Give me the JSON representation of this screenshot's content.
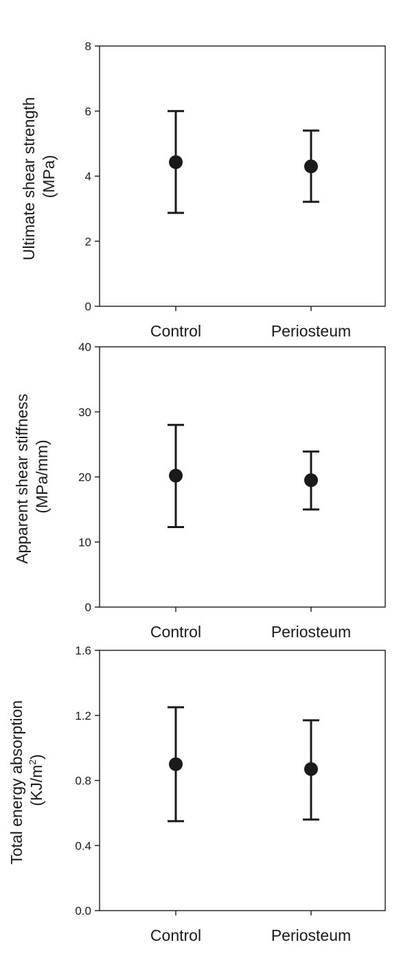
{
  "chart_data": [
    {
      "type": "scatter",
      "categories": [
        "Control",
        "Periosteum"
      ],
      "ylabel": [
        "Ultimate shear strength",
        "(MPa)"
      ],
      "ylim": [
        0,
        8
      ],
      "yticks": [
        0,
        2,
        4,
        6,
        8
      ],
      "ytick_labels": [
        "0",
        "2",
        "4",
        "6",
        "8"
      ],
      "values": [
        4.43,
        4.3
      ],
      "error_low": [
        2.87,
        3.21
      ],
      "error_high": [
        6.0,
        5.4
      ]
    },
    {
      "type": "scatter",
      "categories": [
        "Control",
        "Periosteum"
      ],
      "ylabel": [
        "Apparent shear stiffness",
        "(MPa/mm)"
      ],
      "ylim": [
        0,
        40
      ],
      "yticks": [
        0,
        10,
        20,
        30,
        40
      ],
      "ytick_labels": [
        "0",
        "10",
        "20",
        "30",
        "40"
      ],
      "values": [
        20.2,
        19.5
      ],
      "error_low": [
        12.3,
        15.0
      ],
      "error_high": [
        28.0,
        23.9
      ]
    },
    {
      "type": "scatter",
      "categories": [
        "Control",
        "Periosteum"
      ],
      "ylabel": [
        "Total energy absorption",
        "(KJ/m",
        "2",
        ")"
      ],
      "ylim": [
        0,
        1.6
      ],
      "yticks": [
        0,
        0.4,
        0.8,
        1.2,
        1.6
      ],
      "ytick_labels": [
        "0.0",
        "0.4",
        "0.8",
        "1.2",
        "1.6"
      ],
      "values": [
        0.9,
        0.87
      ],
      "error_low": [
        0.55,
        0.56
      ],
      "error_high": [
        1.25,
        1.17
      ]
    }
  ]
}
